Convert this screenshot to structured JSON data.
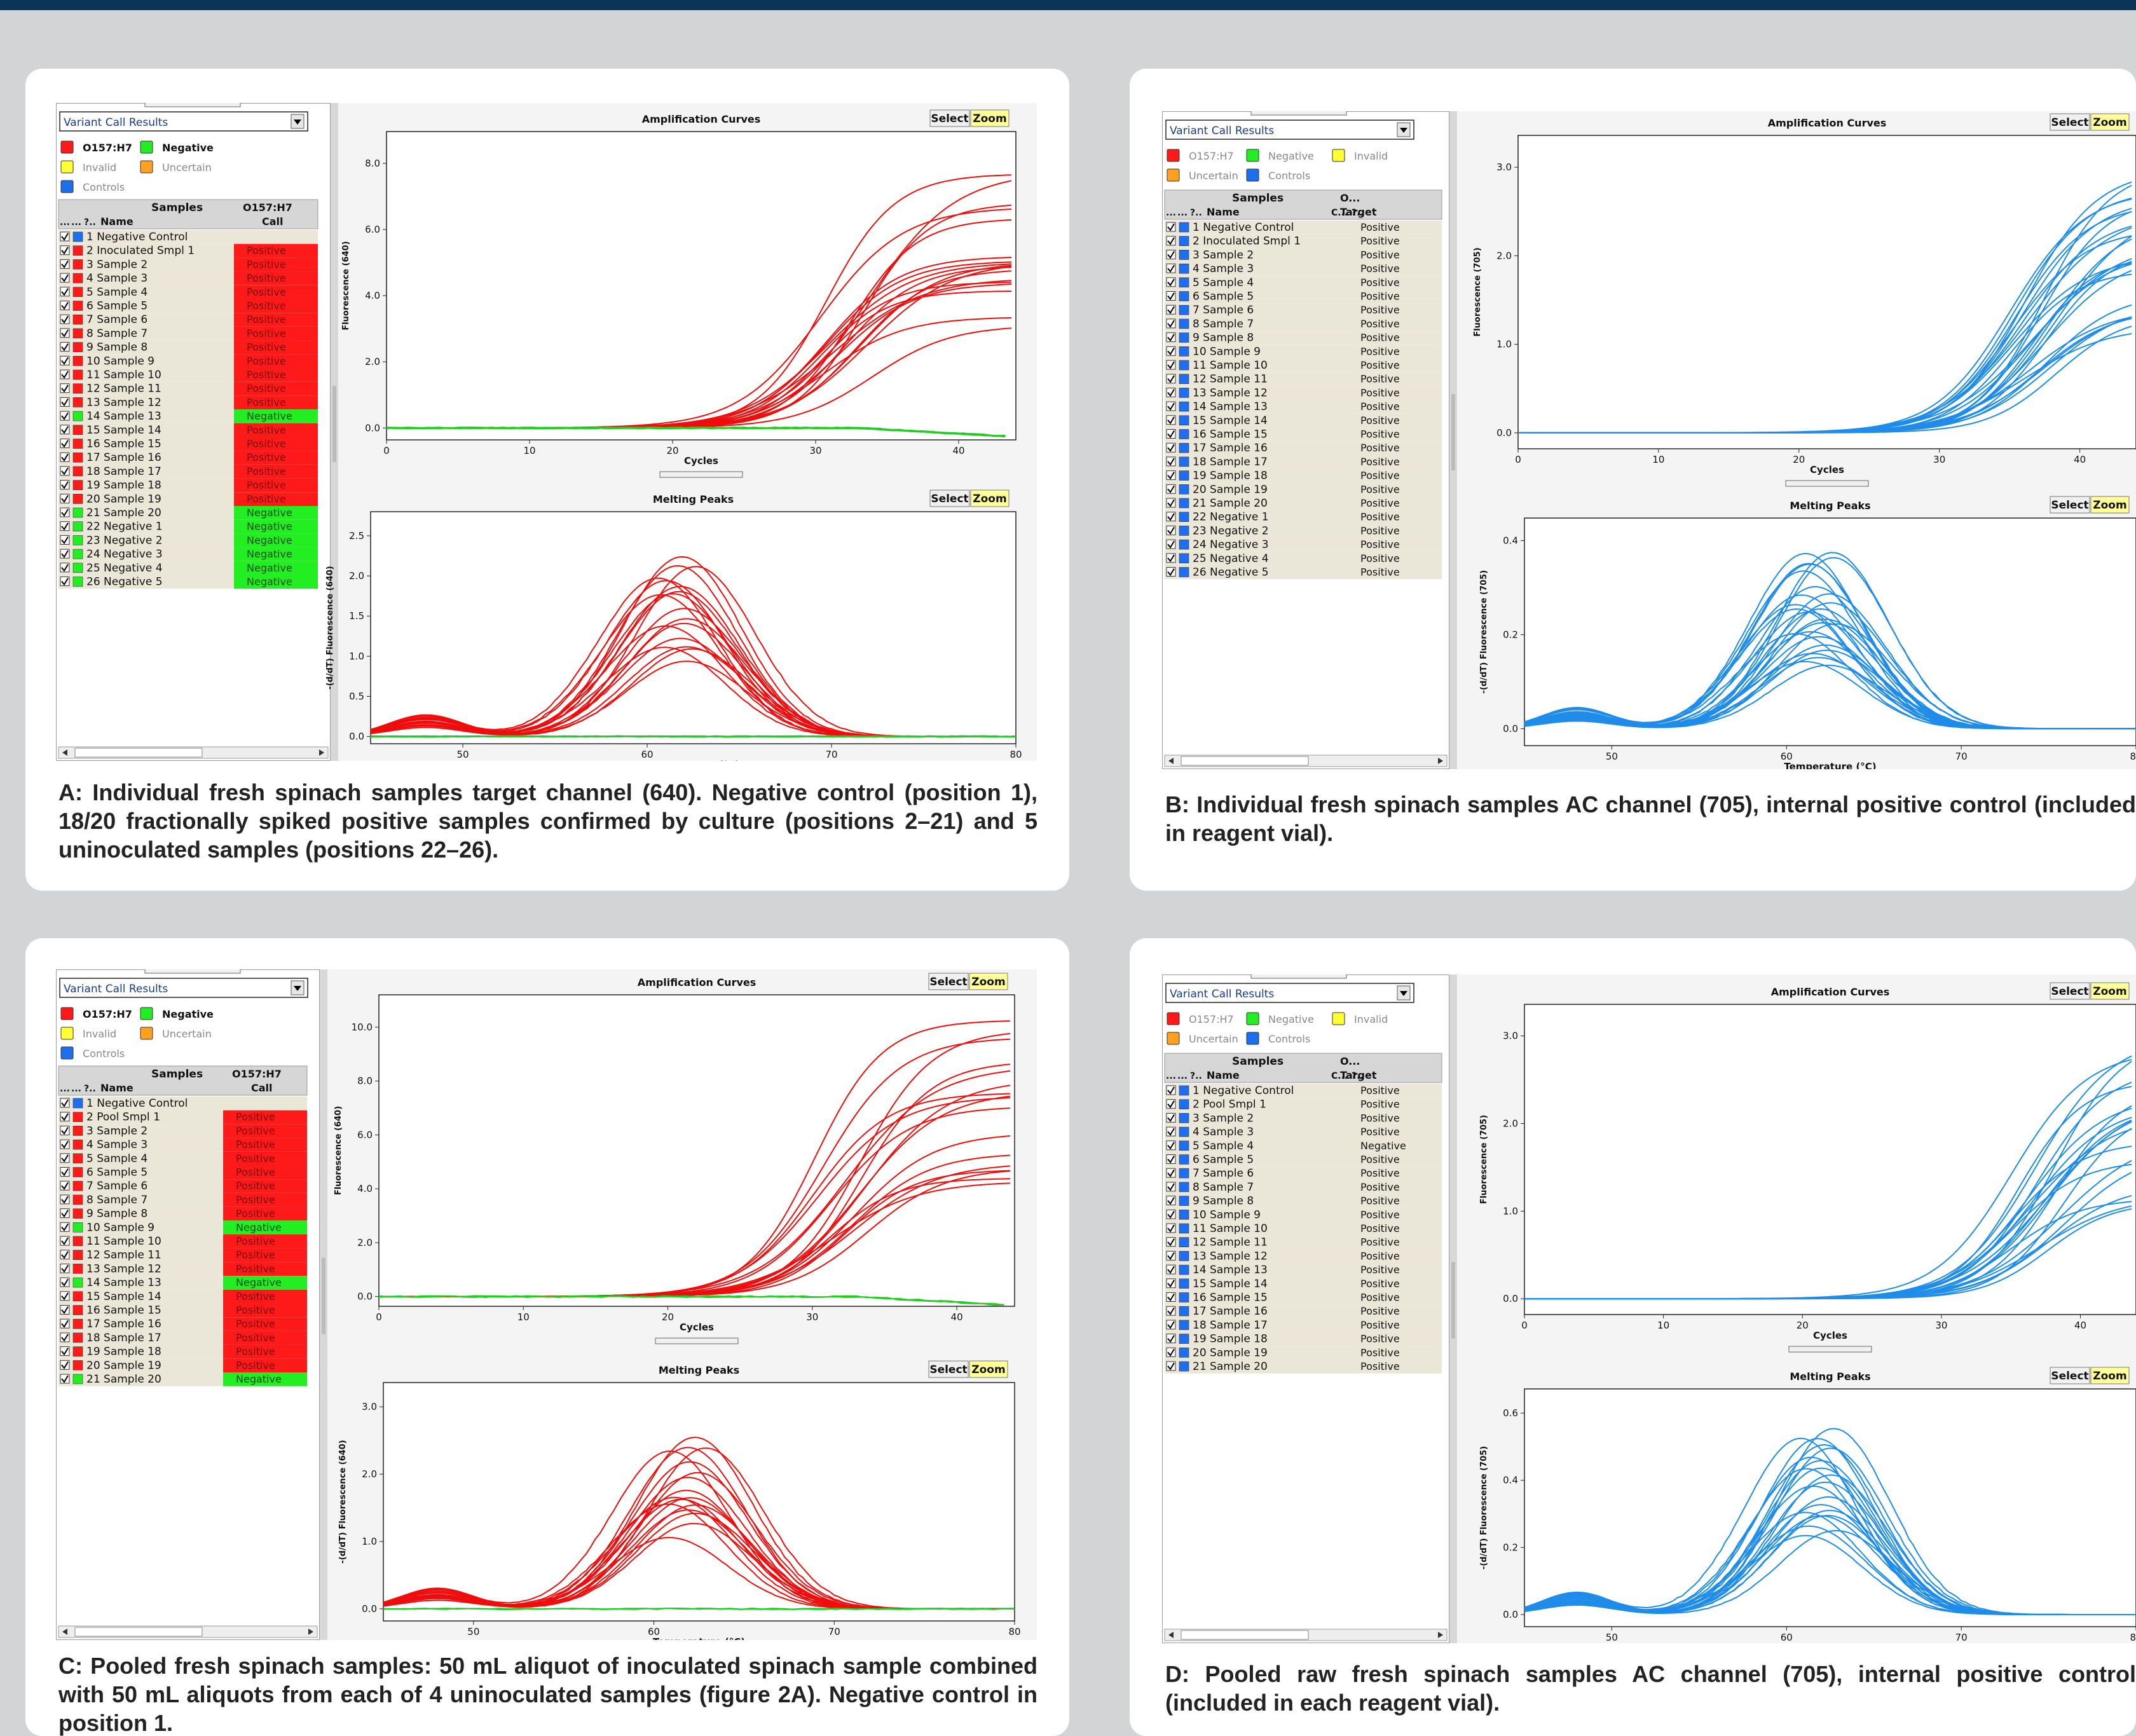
{
  "common": {
    "dropdown": "Variant Call Results",
    "amp_title": "Amplification Curves",
    "melt_title": "Melting Peaks",
    "select_label": "Select",
    "zoom_label": "Zoom",
    "cycles_label": "Cycles",
    "temp_label": "Temperature (°C)",
    "samples_header": "Samples",
    "name_header": "Name",
    "col_ellipsis": "...",
    "col_short": "?..",
    "legend": {
      "o157": "O157:H7",
      "negative": "Negative",
      "invalid": "Invalid",
      "uncertain": "Uncertain",
      "controls": "Controls"
    }
  },
  "colors": {
    "positive": "#ff1a1a",
    "negative": "#22ee22",
    "controls": "#1e6ff0",
    "invalid": "#ffff33",
    "uncertain": "#ffa020",
    "curve_red": "#ee0d0d",
    "curve_green": "#22cc22",
    "curve_blue": "#1e8ce8",
    "topbar": "#0c3458"
  },
  "panels": [
    {
      "id": "A",
      "caption": "A:  Individual fresh spinach samples target channel (640).  Negative control (position 1), 18/20 fractionally spiked positive samples confirmed by culture (positions 2–21) and 5 uninoculated samples (positions 22–26).",
      "variant": "call",
      "target_header": "O157:H7",
      "target_sub": "Call",
      "amp_ylabel": "Fluorescence (640)",
      "melt_ylabel": "-(d/dT) Fluorescence (640)",
      "amp_yticks": [
        "0.0",
        "2.0",
        "4.0",
        "6.0",
        "8.0"
      ],
      "amp_xticks": [
        "0",
        "10",
        "20",
        "30",
        "40"
      ],
      "melt_yticks": [
        "0.0",
        "0.5",
        "1.0",
        "1.5",
        "2.0",
        "2.5"
      ],
      "melt_xticks": [
        "50",
        "60",
        "70",
        "80"
      ],
      "rows": [
        {
          "label": "1 Negative Control",
          "sw": "controls",
          "call": ""
        },
        {
          "label": "2 Inoculated Smpl 1",
          "sw": "positive",
          "call": "Positive"
        },
        {
          "label": "3 Sample 2",
          "sw": "positive",
          "call": "Positive"
        },
        {
          "label": "4 Sample 3",
          "sw": "positive",
          "call": "Positive"
        },
        {
          "label": "5 Sample 4",
          "sw": "positive",
          "call": "Positive"
        },
        {
          "label": "6 Sample 5",
          "sw": "positive",
          "call": "Positive"
        },
        {
          "label": "7 Sample 6",
          "sw": "positive",
          "call": "Positive"
        },
        {
          "label": "8 Sample 7",
          "sw": "positive",
          "call": "Positive"
        },
        {
          "label": "9 Sample 8",
          "sw": "positive",
          "call": "Positive"
        },
        {
          "label": "10 Sample 9",
          "sw": "positive",
          "call": "Positive"
        },
        {
          "label": "11 Sample 10",
          "sw": "positive",
          "call": "Positive"
        },
        {
          "label": "12 Sample 11",
          "sw": "positive",
          "call": "Positive"
        },
        {
          "label": "13 Sample 12",
          "sw": "positive",
          "call": "Positive"
        },
        {
          "label": "14 Sample 13",
          "sw": "negative",
          "call": "Negative"
        },
        {
          "label": "15 Sample 14",
          "sw": "positive",
          "call": "Positive"
        },
        {
          "label": "16 Sample 15",
          "sw": "positive",
          "call": "Positive"
        },
        {
          "label": "17 Sample 16",
          "sw": "positive",
          "call": "Positive"
        },
        {
          "label": "18 Sample 17",
          "sw": "positive",
          "call": "Positive"
        },
        {
          "label": "19 Sample 18",
          "sw": "positive",
          "call": "Positive"
        },
        {
          "label": "20 Sample 19",
          "sw": "positive",
          "call": "Positive"
        },
        {
          "label": "21 Sample 20",
          "sw": "negative",
          "call": "Negative"
        },
        {
          "label": "22 Negative 1",
          "sw": "negative",
          "call": "Negative"
        },
        {
          "label": "23 Negative 2",
          "sw": "negative",
          "call": "Negative"
        },
        {
          "label": "24 Negative 3",
          "sw": "negative",
          "call": "Negative"
        },
        {
          "label": "25 Negative 4",
          "sw": "negative",
          "call": "Negative"
        },
        {
          "label": "26 Negative 5",
          "sw": "negative",
          "call": "Negative"
        }
      ]
    },
    {
      "id": "B",
      "caption": "B: Individual fresh spinach samples AC channel (705), internal positive control (included in reagent vial).",
      "variant": "target",
      "target_header": "O...",
      "target_sub": "Target",
      "amp_ylabel": "Fluorescence (705)",
      "melt_ylabel": "-(d/dT) Fluorescence (705)",
      "amp_yticks": [
        "0.0",
        "1.0",
        "2.0",
        "3.0"
      ],
      "amp_xticks": [
        "0",
        "10",
        "20",
        "30",
        "40"
      ],
      "melt_yticks": [
        "0.0",
        "0.2",
        "0.4"
      ],
      "melt_xticks": [
        "50",
        "60",
        "70",
        "80"
      ],
      "rows": [
        {
          "label": "1 Negative Control",
          "sw": "controls",
          "call": "Positive"
        },
        {
          "label": "2 Inoculated Smpl 1",
          "sw": "controls",
          "call": "Positive"
        },
        {
          "label": "3 Sample 2",
          "sw": "controls",
          "call": "Positive"
        },
        {
          "label": "4 Sample 3",
          "sw": "controls",
          "call": "Positive"
        },
        {
          "label": "5 Sample 4",
          "sw": "controls",
          "call": "Positive"
        },
        {
          "label": "6 Sample 5",
          "sw": "controls",
          "call": "Positive"
        },
        {
          "label": "7 Sample 6",
          "sw": "controls",
          "call": "Positive"
        },
        {
          "label": "8 Sample 7",
          "sw": "controls",
          "call": "Positive"
        },
        {
          "label": "9 Sample 8",
          "sw": "controls",
          "call": "Positive"
        },
        {
          "label": "10 Sample 9",
          "sw": "controls",
          "call": "Positive"
        },
        {
          "label": "11 Sample 10",
          "sw": "controls",
          "call": "Positive"
        },
        {
          "label": "12 Sample 11",
          "sw": "controls",
          "call": "Positive"
        },
        {
          "label": "13 Sample 12",
          "sw": "controls",
          "call": "Positive"
        },
        {
          "label": "14 Sample 13",
          "sw": "controls",
          "call": "Positive"
        },
        {
          "label": "15 Sample 14",
          "sw": "controls",
          "call": "Positive"
        },
        {
          "label": "16 Sample 15",
          "sw": "controls",
          "call": "Positive"
        },
        {
          "label": "17 Sample 16",
          "sw": "controls",
          "call": "Positive"
        },
        {
          "label": "18 Sample 17",
          "sw": "controls",
          "call": "Positive"
        },
        {
          "label": "19 Sample 18",
          "sw": "controls",
          "call": "Positive"
        },
        {
          "label": "20 Sample 19",
          "sw": "controls",
          "call": "Positive"
        },
        {
          "label": "21 Sample 20",
          "sw": "controls",
          "call": "Positive"
        },
        {
          "label": "22 Negative 1",
          "sw": "controls",
          "call": "Positive"
        },
        {
          "label": "23 Negative 2",
          "sw": "controls",
          "call": "Positive"
        },
        {
          "label": "24 Negative 3",
          "sw": "controls",
          "call": "Positive"
        },
        {
          "label": "25 Negative 4",
          "sw": "controls",
          "call": "Positive"
        },
        {
          "label": "26 Negative 5",
          "sw": "controls",
          "call": "Positive"
        }
      ]
    },
    {
      "id": "C",
      "caption": "C: Pooled fresh spinach samples: 50 mL aliquot of inoculated spinach sample combined with 50 mL aliquots from each of 4 uninoculated samples (figure 2A).  Negative control in position 1.",
      "variant": "call",
      "target_header": "O157:H7",
      "target_sub": "Call",
      "amp_ylabel": "Fluorescence (640)",
      "melt_ylabel": "-(d/dT) Fluorescence (640)",
      "amp_yticks": [
        "0.0",
        "2.0",
        "4.0",
        "6.0",
        "8.0",
        "10.0"
      ],
      "amp_xticks": [
        "0",
        "10",
        "20",
        "30",
        "40"
      ],
      "melt_yticks": [
        "0.0",
        "1.0",
        "2.0",
        "3.0"
      ],
      "melt_xticks": [
        "50",
        "60",
        "70",
        "80"
      ],
      "rows": [
        {
          "label": "1 Negative Control",
          "sw": "controls",
          "call": ""
        },
        {
          "label": "2 Pool Smpl 1",
          "sw": "positive",
          "call": "Positive"
        },
        {
          "label": "3 Sample 2",
          "sw": "positive",
          "call": "Positive"
        },
        {
          "label": "4 Sample 3",
          "sw": "positive",
          "call": "Positive"
        },
        {
          "label": "5 Sample 4",
          "sw": "positive",
          "call": "Positive"
        },
        {
          "label": "6 Sample 5",
          "sw": "positive",
          "call": "Positive"
        },
        {
          "label": "7 Sample 6",
          "sw": "positive",
          "call": "Positive"
        },
        {
          "label": "8 Sample 7",
          "sw": "positive",
          "call": "Positive"
        },
        {
          "label": "9 Sample 8",
          "sw": "positive",
          "call": "Positive"
        },
        {
          "label": "10 Sample 9",
          "sw": "negative",
          "call": "Negative"
        },
        {
          "label": "11 Sample 10",
          "sw": "positive",
          "call": "Positive"
        },
        {
          "label": "12 Sample 11",
          "sw": "positive",
          "call": "Positive"
        },
        {
          "label": "13 Sample 12",
          "sw": "positive",
          "call": "Positive"
        },
        {
          "label": "14 Sample 13",
          "sw": "negative",
          "call": "Negative"
        },
        {
          "label": "15 Sample 14",
          "sw": "positive",
          "call": "Positive"
        },
        {
          "label": "16 Sample 15",
          "sw": "positive",
          "call": "Positive"
        },
        {
          "label": "17 Sample 16",
          "sw": "positive",
          "call": "Positive"
        },
        {
          "label": "18 Sample 17",
          "sw": "positive",
          "call": "Positive"
        },
        {
          "label": "19 Sample 18",
          "sw": "positive",
          "call": "Positive"
        },
        {
          "label": "20 Sample 19",
          "sw": "positive",
          "call": "Positive"
        },
        {
          "label": "21 Sample 20",
          "sw": "negative",
          "call": "Negative"
        }
      ]
    },
    {
      "id": "D",
      "caption": "D: Pooled raw fresh spinach samples AC channel (705), internal positive control (included in each reagent vial).",
      "variant": "target",
      "target_header": "O...",
      "target_sub": "Target",
      "amp_ylabel": "Fluorescence (705)",
      "melt_ylabel": "-(d/dT) Fluorescence (705)",
      "amp_yticks": [
        "0.0",
        "1.0",
        "2.0",
        "3.0"
      ],
      "amp_xticks": [
        "0",
        "10",
        "20",
        "30",
        "40"
      ],
      "melt_yticks": [
        "0.0",
        "0.2",
        "0.4",
        "0.6"
      ],
      "melt_xticks": [
        "50",
        "60",
        "70",
        "80"
      ],
      "rows": [
        {
          "label": "1 Negative Control",
          "sw": "controls",
          "call": "Positive"
        },
        {
          "label": "2 Pool Smpl 1",
          "sw": "controls",
          "call": "Positive"
        },
        {
          "label": "3 Sample 2",
          "sw": "controls",
          "call": "Positive"
        },
        {
          "label": "4 Sample 3",
          "sw": "controls",
          "call": "Positive"
        },
        {
          "label": "5 Sample 4",
          "sw": "controls",
          "call": "Negative"
        },
        {
          "label": "6 Sample 5",
          "sw": "controls",
          "call": "Positive"
        },
        {
          "label": "7 Sample 6",
          "sw": "controls",
          "call": "Positive"
        },
        {
          "label": "8 Sample 7",
          "sw": "controls",
          "call": "Positive"
        },
        {
          "label": "9 Sample 8",
          "sw": "controls",
          "call": "Positive"
        },
        {
          "label": "10 Sample 9",
          "sw": "controls",
          "call": "Positive"
        },
        {
          "label": "11 Sample 10",
          "sw": "controls",
          "call": "Positive"
        },
        {
          "label": "12 Sample 11",
          "sw": "controls",
          "call": "Positive"
        },
        {
          "label": "13 Sample 12",
          "sw": "controls",
          "call": "Positive"
        },
        {
          "label": "14 Sample 13",
          "sw": "controls",
          "call": "Positive"
        },
        {
          "label": "15 Sample 14",
          "sw": "controls",
          "call": "Positive"
        },
        {
          "label": "16 Sample 15",
          "sw": "controls",
          "call": "Positive"
        },
        {
          "label": "17 Sample 16",
          "sw": "controls",
          "call": "Positive"
        },
        {
          "label": "18 Sample 17",
          "sw": "controls",
          "call": "Positive"
        },
        {
          "label": "19 Sample 18",
          "sw": "controls",
          "call": "Positive"
        },
        {
          "label": "20 Sample 19",
          "sw": "controls",
          "call": "Positive"
        },
        {
          "label": "21 Sample 20",
          "sw": "controls",
          "call": "Positive"
        }
      ]
    }
  ]
}
